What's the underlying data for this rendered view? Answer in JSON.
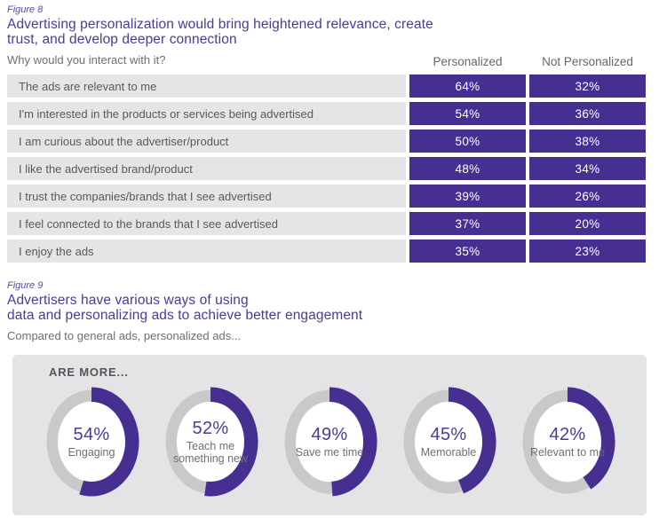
{
  "colors": {
    "purple": "#472f92",
    "purpleHead": "#4b3a9c",
    "purpleLabel": "#5b48a5",
    "rowBg": "#e5e5e7",
    "panelBg": "#e4e4e6",
    "textGray": "#58595b",
    "subtitleGray": "#6d6e71",
    "headerGray": "#66676a",
    "donutGray": "#c9c9cb",
    "valueText": "#ffffff"
  },
  "figure8": {
    "figure_label": "Figure 8",
    "title_lines": [
      "Advertising personalization would bring heightened relevance, create",
      "trust, and develop deeper connection"
    ],
    "subtitle": "Why would you interact with it?"
  },
  "figure9": {
    "figure_label": "Figure 9",
    "title_lines": [
      "Advertisers have various ways of using",
      "data and personalizing ads to achieve better engagement"
    ],
    "subtitle": "Compared to general ads, personalized ads...",
    "panel_heading": "ARE MORE..."
  },
  "chart_data": [
    {
      "type": "table",
      "figure": "Figure 8",
      "title": "Advertising personalization would bring heightened relevance, create trust, and develop deeper connection",
      "subtitle": "Why would you interact with it?",
      "unit": "%",
      "columns": [
        "Personalized",
        "Not Personalized"
      ],
      "categories": [
        "The ads are relevant to me",
        "I'm interested in the products or services being advertised",
        "I am curious about the advertiser/product",
        "I like the advertised brand/product",
        "I trust the companies/brands that I see advertised",
        "I feel connected to the brands that I see advertised",
        "I enjoy the ads"
      ],
      "series": [
        {
          "name": "Personalized",
          "values": [
            64,
            54,
            50,
            48,
            39,
            37,
            35
          ]
        },
        {
          "name": "Not Personalized",
          "values": [
            32,
            36,
            38,
            34,
            26,
            20,
            23
          ]
        }
      ]
    },
    {
      "type": "pie",
      "subtype": "donut",
      "figure": "Figure 9",
      "title": "Advertisers have various ways of using data and personalizing ads to achieve better engagement",
      "subtitle": "Compared to general ads, personalized ads...",
      "group_label": "ARE MORE...",
      "unit": "%",
      "categories": [
        "Engaging",
        "Teach me something new",
        "Save me time",
        "Memorable",
        "Relevant to me"
      ],
      "values": [
        54,
        52,
        49,
        45,
        42
      ],
      "arc_start": "top",
      "arc_direction": "clockwise",
      "legend_position": "inside"
    }
  ]
}
